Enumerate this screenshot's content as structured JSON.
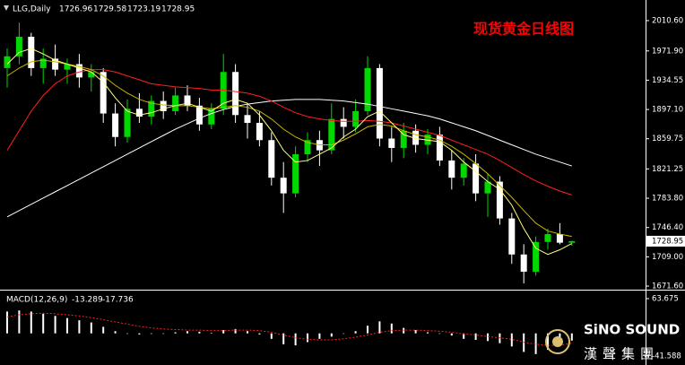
{
  "chart_data": [
    {
      "type": "candlestick",
      "title": "现货黄金日线图",
      "symbol": "LLG,Daily",
      "categories": [
        null,
        null,
        null,
        null,
        null,
        null,
        null,
        null,
        null,
        null,
        null,
        null,
        null,
        null,
        null,
        null,
        null,
        null,
        null,
        null,
        null,
        null,
        null,
        null,
        null,
        null,
        null,
        null,
        null,
        null,
        null,
        null,
        null,
        null,
        null,
        null,
        null,
        null,
        null,
        null,
        null,
        null,
        null,
        null,
        null,
        null,
        null,
        null
      ],
      "open": [
        1950,
        1965,
        1990,
        1950,
        1962,
        1948,
        1955,
        1938,
        1945,
        1892,
        1862,
        1898,
        1888,
        1908,
        1895,
        1915,
        1902,
        1878,
        1898,
        1945,
        1890,
        1880,
        1858,
        1810,
        1790,
        1840,
        1858,
        1845,
        1885,
        1875,
        1895,
        1950,
        1860,
        1848,
        1870,
        1852,
        1865,
        1832,
        1810,
        1828,
        1790,
        1805,
        1758,
        1712,
        1690,
        1728,
        1738,
        1726.96
      ],
      "high": [
        1975,
        2008,
        1995,
        1975,
        1980,
        1962,
        1968,
        1955,
        1950,
        1905,
        1910,
        1918,
        1915,
        1920,
        1925,
        1928,
        1912,
        1905,
        1968,
        1955,
        1905,
        1895,
        1868,
        1830,
        1850,
        1868,
        1870,
        1905,
        1900,
        1910,
        1965,
        1955,
        1875,
        1880,
        1878,
        1872,
        1875,
        1845,
        1835,
        1840,
        1815,
        1812,
        1765,
        1725,
        1735,
        1745,
        1752,
        1729.58
      ],
      "low": [
        1925,
        1955,
        1940,
        1930,
        1940,
        1930,
        1925,
        1920,
        1880,
        1850,
        1855,
        1880,
        1878,
        1885,
        1890,
        1895,
        1870,
        1872,
        1890,
        1880,
        1860,
        1850,
        1800,
        1765,
        1785,
        1830,
        1825,
        1840,
        1860,
        1868,
        1890,
        1850,
        1830,
        1835,
        1842,
        1840,
        1825,
        1795,
        1800,
        1780,
        1760,
        1750,
        1700,
        1675,
        1685,
        1718,
        1725,
        1723.19
      ],
      "close": [
        1965,
        1990,
        1950,
        1962,
        1948,
        1955,
        1938,
        1945,
        1892,
        1862,
        1898,
        1888,
        1908,
        1895,
        1915,
        1902,
        1878,
        1898,
        1945,
        1890,
        1880,
        1858,
        1810,
        1790,
        1840,
        1858,
        1845,
        1885,
        1875,
        1895,
        1950,
        1860,
        1848,
        1870,
        1852,
        1865,
        1832,
        1810,
        1828,
        1790,
        1805,
        1758,
        1712,
        1690,
        1728,
        1738,
        1727,
        1728.95
      ],
      "up_color": "#00d800",
      "down_color": "#ffffff",
      "series": [
        {
          "color": "#ffffff",
          "values": [
            1760,
            1768,
            1776,
            1784,
            1792,
            1800,
            1808,
            1816,
            1824,
            1832,
            1840,
            1848,
            1856,
            1864,
            1872,
            1879,
            1886,
            1892,
            1897,
            1901,
            1904,
            1906,
            1908,
            1909,
            1910,
            1910,
            1910,
            1909,
            1908,
            1906,
            1904,
            1901,
            1898,
            1895,
            1892,
            1889,
            1885,
            1880,
            1875,
            1870,
            1864,
            1858,
            1852,
            1846,
            1840,
            1835,
            1830,
            1825
          ]
        },
        {
          "color": "#ff2020",
          "values": [
            1845,
            1870,
            1895,
            1915,
            1930,
            1940,
            1945,
            1948,
            1948,
            1945,
            1940,
            1935,
            1930,
            1928,
            1926,
            1925,
            1924,
            1922,
            1922,
            1920,
            1918,
            1914,
            1908,
            1900,
            1893,
            1888,
            1885,
            1883,
            1882,
            1882,
            1883,
            1882,
            1880,
            1876,
            1872,
            1868,
            1864,
            1858,
            1852,
            1846,
            1840,
            1832,
            1823,
            1814,
            1806,
            1799,
            1793,
            1788
          ]
        },
        {
          "color": "#c8b400",
          "values": [
            1940,
            1950,
            1958,
            1960,
            1958,
            1955,
            1952,
            1948,
            1940,
            1928,
            1918,
            1910,
            1905,
            1903,
            1902,
            1902,
            1900,
            1898,
            1900,
            1902,
            1900,
            1895,
            1885,
            1872,
            1862,
            1855,
            1852,
            1852,
            1858,
            1866,
            1875,
            1878,
            1876,
            1870,
            1865,
            1862,
            1858,
            1850,
            1840,
            1828,
            1815,
            1800,
            1785,
            1768,
            1752,
            1742,
            1738,
            1735
          ]
        },
        {
          "color": "#ffff80",
          "values": [
            1955,
            1970,
            1975,
            1968,
            1960,
            1955,
            1950,
            1945,
            1932,
            1912,
            1895,
            1890,
            1893,
            1898,
            1902,
            1905,
            1900,
            1895,
            1905,
            1910,
            1905,
            1890,
            1870,
            1845,
            1830,
            1832,
            1840,
            1848,
            1862,
            1872,
            1888,
            1895,
            1880,
            1865,
            1860,
            1858,
            1856,
            1845,
            1830,
            1818,
            1805,
            1795,
            1775,
            1745,
            1720,
            1712,
            1718,
            1726
          ]
        }
      ],
      "ylim": [
        1668.2,
        2036.9
      ],
      "yticks": [
        {
          "value": 2010.6,
          "label": "2010.60"
        },
        {
          "value": 1971.9,
          "label": "1971.90"
        },
        1934.55,
        {
          "value": 1897.1,
          "label": "1897.10"
        },
        1859.75,
        1821.25,
        {
          "value": 1783.8,
          "label": "1783.80"
        },
        {
          "value": 1746.4,
          "label": "1746.40"
        },
        {
          "value": 1709,
          "label": "1709.00"
        },
        {
          "value": 1671.6,
          "label": "1671.60"
        }
      ]
    },
    {
      "type": "macd",
      "title": "MACD(12,26,9)",
      "categories": [
        null,
        null,
        null,
        null,
        null,
        null,
        null,
        null,
        null,
        null,
        null,
        null,
        null,
        null,
        null,
        null,
        null,
        null,
        null,
        null,
        null,
        null,
        null,
        null,
        null,
        null,
        null,
        null,
        null,
        null,
        null,
        null,
        null,
        null,
        null,
        null,
        null,
        null,
        null,
        null,
        null,
        null,
        null,
        null,
        null,
        null,
        null,
        null
      ],
      "series": [
        {
          "color": "#ffffff",
          "values": [
            40,
            42,
            40,
            36,
            32,
            28,
            24,
            20,
            12,
            4,
            0,
            -2,
            -1,
            0,
            2,
            4,
            3,
            1,
            6,
            8,
            4,
            -2,
            -10,
            -20,
            -22,
            -16,
            -10,
            -6,
            0,
            4,
            14,
            22,
            18,
            10,
            6,
            2,
            0,
            -4,
            -10,
            -12,
            -14,
            -18,
            -24,
            -34,
            -38,
            -30,
            -22,
            -13.289
          ]
        },
        {
          "color": "#ff2020",
          "values": [
            30,
            34,
            36,
            37,
            36,
            34,
            32,
            29,
            25,
            21,
            17,
            13,
            10,
            8,
            7,
            6,
            6,
            5,
            5,
            6,
            6,
            5,
            2,
            -3,
            -8,
            -11,
            -12,
            -12,
            -10,
            -7,
            -3,
            2,
            5,
            6,
            6,
            5,
            4,
            2,
            -1,
            -3,
            -6,
            -8,
            -11,
            -16,
            -20,
            -22,
            -22,
            -17.736
          ]
        }
      ],
      "ylim": [
        -58,
        76.8
      ],
      "yticks": [
        63.675,
        -41.588
      ]
    }
  ],
  "watermark": {
    "brand": "SiNO SOUND",
    "chinese": "漢聲集團"
  }
}
